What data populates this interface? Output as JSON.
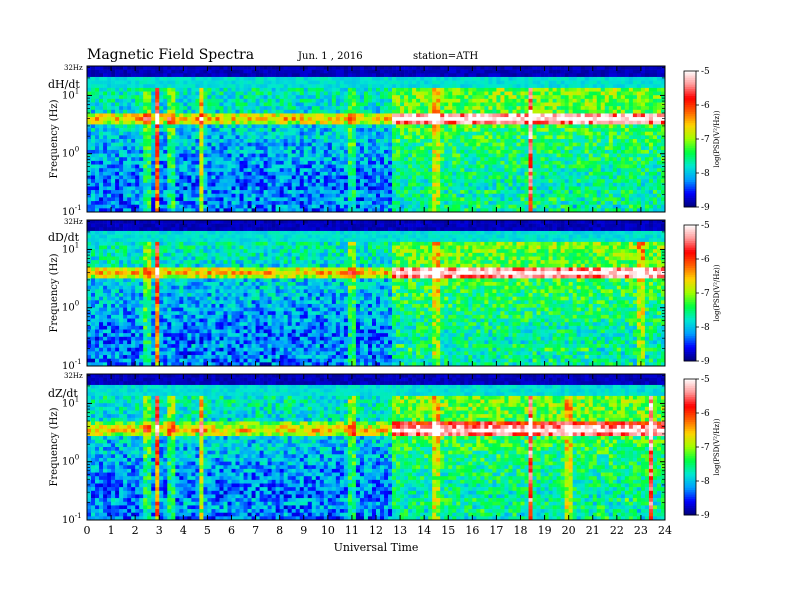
{
  "header": {
    "title": "Magnetic  Field  Spectra",
    "date": "Jun.  1  , 2016",
    "station": "station=ATH"
  },
  "chart_data": {
    "type": "heatmap",
    "xlabel": "Universal Time",
    "x_ticks": [
      "0",
      "1",
      "2",
      "3",
      "4",
      "5",
      "6",
      "7",
      "8",
      "9",
      "10",
      "11",
      "12",
      "13",
      "14",
      "15",
      "16",
      "17",
      "18",
      "19",
      "20",
      "21",
      "22",
      "23",
      "24"
    ],
    "xlim": [
      0,
      24
    ],
    "ylabel": "Frequency  (Hz)",
    "yscale": "log",
    "ylim": [
      0.1,
      32
    ],
    "top_label": "32Hz",
    "y_ticks": [
      {
        "base": "10",
        "exp": "-1",
        "value": 0.1
      },
      {
        "base": "10",
        "exp": "0",
        "value": 1
      },
      {
        "base": "10",
        "exp": "1",
        "value": 10
      }
    ],
    "colorbar": {
      "label": "log(PSD(V²/Hz))",
      "ticks": [
        "-5",
        "-6",
        "-7",
        "-8",
        "-9"
      ],
      "range": [
        -9,
        -5
      ],
      "colors": [
        "#00007a",
        "#0000ff",
        "#00a0ff",
        "#00e8d0",
        "#00ff40",
        "#a0ff00",
        "#ffd200",
        "#ff6000",
        "#ff0000",
        "#ff9999",
        "#ffffff"
      ]
    },
    "panels": [
      {
        "name": "dH/dt",
        "band_hz": 4.0,
        "active_hours": [
          [
            12.6,
            24
          ]
        ],
        "spikes_ut": [
          2.5,
          2.9,
          3.5,
          4.8,
          11.0,
          14.5,
          18.4
        ]
      },
      {
        "name": "dD/dt",
        "band_hz": 4.0,
        "active_hours": [
          [
            12.6,
            24
          ]
        ],
        "spikes_ut": [
          2.5,
          2.9,
          11.0,
          14.5,
          23.0
        ]
      },
      {
        "name": "dZ/dt",
        "band_hz": 3.5,
        "active_hours": [
          [
            12.6,
            24
          ]
        ],
        "spikes_ut": [
          2.5,
          2.9,
          3.5,
          4.8,
          11.0,
          14.5,
          18.4,
          20.0,
          23.4
        ]
      }
    ]
  }
}
